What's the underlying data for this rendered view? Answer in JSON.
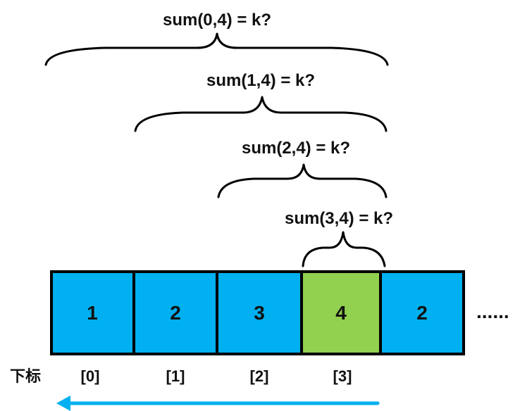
{
  "sum_labels": [
    "sum(0,4) = k?",
    "sum(1,4) = k?",
    "sum(2,4) = k?",
    "sum(3,4) = k?"
  ],
  "cells": [
    {
      "value": "1",
      "color": "#00b0f0"
    },
    {
      "value": "2",
      "color": "#00b0f0"
    },
    {
      "value": "3",
      "color": "#00b0f0"
    },
    {
      "value": "4",
      "color": "#92d050"
    },
    {
      "value": "2",
      "color": "#00b0f0"
    }
  ],
  "ellipsis": "......",
  "index_label": "下标",
  "indices": [
    "[0]",
    "[1]",
    "[2]",
    "[3]"
  ],
  "arrow": {
    "direction": "left",
    "color": "#00b0f0"
  },
  "border_color": "#000000"
}
